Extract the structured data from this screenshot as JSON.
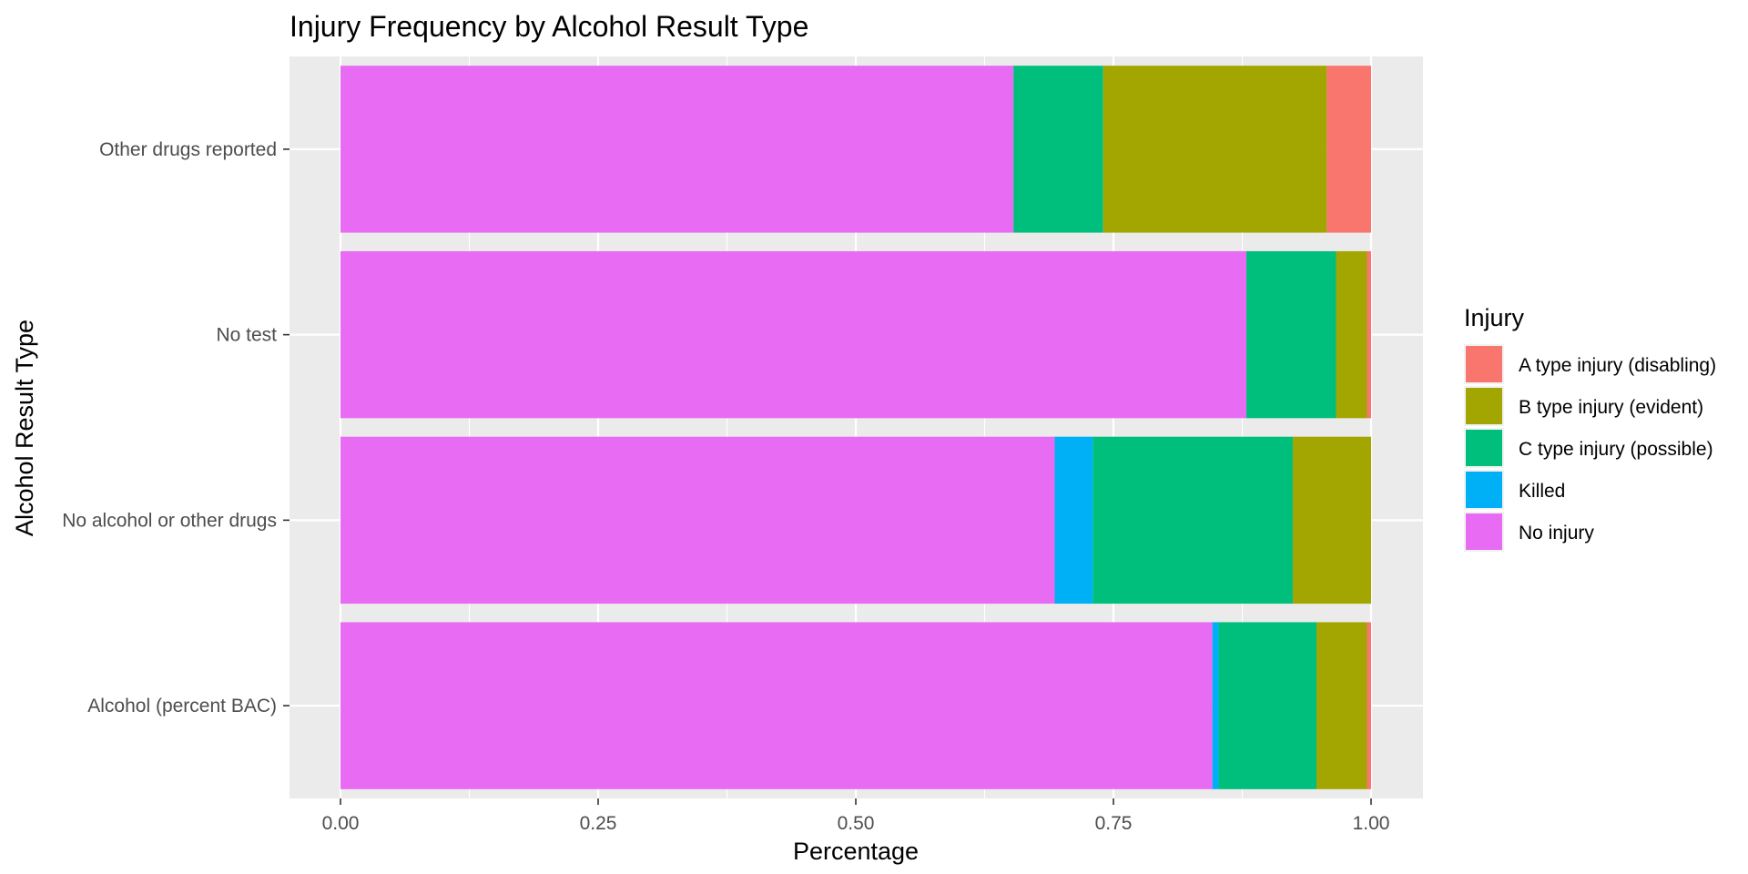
{
  "chart_data": {
    "type": "bar",
    "orientation": "horizontal",
    "stacked": "percent",
    "title": "Injury Frequency by Alcohol Result Type",
    "xlabel": "Percentage",
    "ylabel": "Alcohol Result Type",
    "xlim": [
      0,
      1
    ],
    "xticks": [
      "0.00",
      "0.25",
      "0.50",
      "0.75",
      "1.00"
    ],
    "grid": true,
    "legend_placement": "right",
    "legend_title": "Injury",
    "categories": [
      "Alcohol (percent BAC)",
      "No alcohol or other drugs",
      "No test",
      "Other drugs reported"
    ],
    "series": [
      {
        "name": "No injury",
        "color": "#E76BF3",
        "values": [
          0.846,
          0.693,
          0.879,
          0.653
        ]
      },
      {
        "name": "Killed",
        "color": "#00B0F6",
        "values": [
          0.006,
          0.037,
          0.0,
          0.0
        ]
      },
      {
        "name": "C type injury (possible)",
        "color": "#00BF7D",
        "values": [
          0.095,
          0.194,
          0.087,
          0.087
        ]
      },
      {
        "name": "B type injury (evident)",
        "color": "#A3A500",
        "values": [
          0.049,
          0.076,
          0.03,
          0.217
        ]
      },
      {
        "name": "A type injury (disabling)",
        "color": "#F8766D",
        "values": [
          0.004,
          0.0,
          0.004,
          0.043
        ]
      }
    ],
    "legend_order": [
      "A type injury (disabling)",
      "B type injury (evident)",
      "C type injury (possible)",
      "Killed",
      "No injury"
    ]
  }
}
